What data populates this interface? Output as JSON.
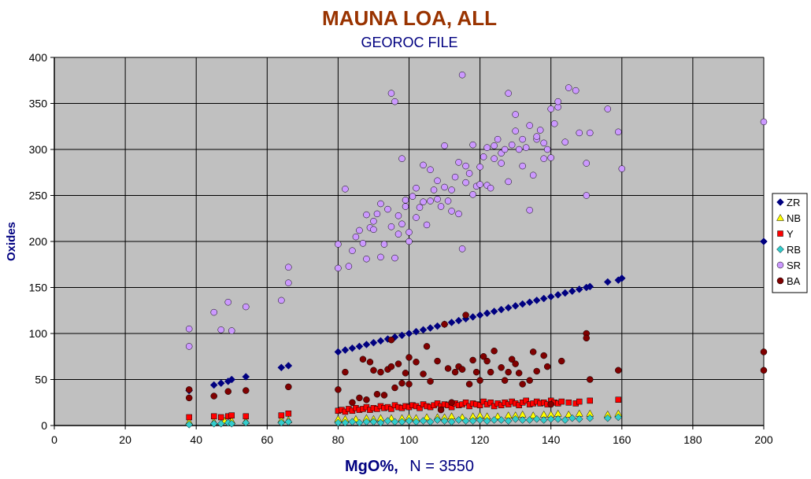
{
  "chart_data": {
    "type": "scatter",
    "title": "MAUNA LOA, ALL",
    "subtitle": "GEOROC FILE",
    "xlabel_main": "MgO%,",
    "xlabel_n": "N = 3550",
    "ylabel": "Oxides",
    "xlim": [
      0,
      200
    ],
    "ylim": [
      0,
      400
    ],
    "x_ticks": [
      "0",
      "20",
      "40",
      "60",
      "80",
      "100",
      "120",
      "140",
      "160",
      "180",
      "200"
    ],
    "y_ticks": [
      "0",
      "50",
      "100",
      "150",
      "200",
      "250",
      "300",
      "350",
      "400"
    ],
    "grid": true,
    "legend_position": "right",
    "plot_background": "#c0c0c0",
    "series": [
      {
        "name": "ZR",
        "marker": "diamond",
        "color": "#000080",
        "x": [
          38,
          45,
          47,
          49,
          50,
          54,
          64,
          66,
          80,
          82,
          84,
          86,
          88,
          90,
          92,
          94,
          96,
          98,
          100,
          102,
          104,
          106,
          108,
          110,
          112,
          114,
          116,
          118,
          120,
          122,
          124,
          126,
          128,
          130,
          132,
          134,
          136,
          138,
          140,
          142,
          144,
          146,
          148,
          150,
          151,
          156,
          159,
          160,
          200
        ],
        "y": [
          38,
          44,
          46,
          48,
          50,
          53,
          63,
          65,
          80,
          82,
          84,
          86,
          88,
          90,
          92,
          94,
          96,
          98,
          100,
          102,
          104,
          106,
          108,
          110,
          112,
          114,
          116,
          118,
          120,
          122,
          124,
          126,
          128,
          130,
          132,
          134,
          136,
          138,
          140,
          142,
          144,
          146,
          148,
          150,
          151,
          156,
          158,
          160,
          200
        ]
      },
      {
        "name": "NB",
        "marker": "triangle",
        "color": "#ffff00",
        "x": [
          38,
          45,
          48,
          50,
          54,
          64,
          66,
          80,
          82,
          85,
          88,
          90,
          92,
          95,
          98,
          100,
          102,
          105,
          108,
          110,
          112,
          115,
          118,
          120,
          122,
          125,
          128,
          130,
          132,
          135,
          138,
          140,
          142,
          145,
          148,
          151,
          156,
          159
        ],
        "y": [
          4,
          4,
          5,
          5,
          5,
          6,
          6,
          7,
          7,
          7,
          8,
          7,
          8,
          8,
          8,
          9,
          8,
          9,
          9,
          9,
          10,
          9,
          10,
          11,
          10,
          10,
          11,
          11,
          12,
          11,
          12,
          12,
          13,
          12,
          13,
          13,
          12,
          13
        ]
      },
      {
        "name": "Y",
        "marker": "square",
        "color": "#ff0000",
        "x": [
          38,
          45,
          47,
          49,
          50,
          54,
          64,
          66,
          80,
          81,
          82,
          83,
          84,
          85,
          86,
          87,
          88,
          89,
          90,
          91,
          92,
          93,
          94,
          95,
          96,
          97,
          98,
          99,
          100,
          101,
          102,
          103,
          104,
          105,
          106,
          107,
          108,
          109,
          110,
          111,
          112,
          113,
          114,
          115,
          116,
          117,
          118,
          119,
          120,
          121,
          122,
          123,
          124,
          125,
          126,
          127,
          128,
          129,
          130,
          131,
          132,
          133,
          134,
          135,
          136,
          137,
          138,
          139,
          140,
          141,
          142,
          143,
          145,
          147,
          148,
          151,
          159
        ],
        "y": [
          9,
          10,
          9,
          10,
          11,
          10,
          11,
          13,
          16,
          17,
          15,
          18,
          16,
          19,
          17,
          18,
          20,
          17,
          19,
          18,
          21,
          19,
          20,
          18,
          22,
          20,
          19,
          21,
          20,
          22,
          21,
          19,
          23,
          21,
          20,
          22,
          24,
          21,
          23,
          22,
          20,
          24,
          22,
          23,
          25,
          21,
          24,
          23,
          22,
          26,
          23,
          25,
          21,
          24,
          22,
          25,
          23,
          26,
          24,
          22,
          25,
          27,
          23,
          24,
          26,
          24,
          25,
          23,
          27,
          25,
          24,
          26,
          25,
          24,
          26,
          27,
          28
        ]
      },
      {
        "name": "RB",
        "marker": "diamond",
        "color": "#33cccc",
        "x": [
          38,
          45,
          47,
          49,
          50,
          54,
          64,
          66,
          80,
          82,
          84,
          86,
          88,
          90,
          92,
          94,
          96,
          98,
          100,
          102,
          104,
          106,
          108,
          110,
          112,
          114,
          116,
          118,
          120,
          122,
          124,
          126,
          128,
          130,
          132,
          134,
          136,
          138,
          140,
          142,
          144,
          146,
          148,
          151,
          156,
          159
        ],
        "y": [
          1,
          2,
          2,
          3,
          2,
          3,
          3,
          4,
          3,
          3,
          4,
          3,
          4,
          4,
          3,
          5,
          4,
          4,
          5,
          4,
          5,
          4,
          6,
          5,
          4,
          6,
          5,
          5,
          6,
          5,
          6,
          6,
          5,
          7,
          6,
          6,
          7,
          6,
          7,
          7,
          6,
          8,
          7,
          8,
          8,
          9
        ]
      },
      {
        "name": "SR",
        "marker": "circle",
        "color": "#cc99ff",
        "x": [
          38,
          38,
          45,
          47,
          49,
          50,
          54,
          64,
          66,
          66,
          80,
          80,
          82,
          83,
          84,
          85,
          86,
          87,
          88,
          88,
          89,
          90,
          90,
          91,
          92,
          92,
          93,
          94,
          95,
          95,
          96,
          96,
          97,
          97,
          98,
          98,
          99,
          99,
          100,
          100,
          101,
          102,
          102,
          103,
          104,
          104,
          105,
          106,
          106,
          107,
          108,
          108,
          109,
          110,
          110,
          111,
          112,
          112,
          113,
          114,
          114,
          115,
          115,
          116,
          116,
          117,
          118,
          118,
          119,
          120,
          120,
          121,
          122,
          122,
          123,
          124,
          124,
          125,
          126,
          126,
          127,
          128,
          128,
          129,
          130,
          130,
          131,
          132,
          132,
          133,
          134,
          134,
          135,
          136,
          136,
          137,
          138,
          138,
          139,
          140,
          140,
          141,
          142,
          142,
          144,
          145,
          147,
          148,
          150,
          150,
          151,
          156,
          159,
          160,
          200
        ],
        "y": [
          86,
          105,
          123,
          104,
          134,
          103,
          129,
          136,
          155,
          172,
          171,
          197,
          257,
          173,
          190,
          205,
          212,
          198,
          181,
          229,
          215,
          222,
          213,
          230,
          183,
          241,
          197,
          235,
          216,
          361,
          352,
          182,
          228,
          208,
          290,
          219,
          238,
          245,
          210,
          200,
          249,
          226,
          258,
          237,
          243,
          283,
          218,
          244,
          278,
          256,
          266,
          246,
          238,
          259,
          304,
          244,
          233,
          256,
          270,
          286,
          230,
          192,
          381,
          264,
          282,
          274,
          305,
          251,
          260,
          262,
          281,
          292,
          302,
          261,
          258,
          290,
          304,
          311,
          285,
          296,
          300,
          265,
          361,
          305,
          338,
          320,
          300,
          311,
          282,
          302,
          234,
          326,
          272,
          311,
          314,
          321,
          290,
          307,
          300,
          344,
          291,
          328,
          346,
          352,
          308,
          367,
          364,
          318,
          250,
          285,
          318,
          344,
          319,
          279,
          330
        ]
      },
      {
        "name": "BA",
        "marker": "circle",
        "color": "#800000",
        "x": [
          38,
          38,
          45,
          49,
          54,
          66,
          80,
          82,
          84,
          86,
          87,
          88,
          89,
          90,
          91,
          92,
          93,
          94,
          95,
          95,
          96,
          97,
          98,
          99,
          100,
          100,
          102,
          104,
          105,
          106,
          108,
          109,
          110,
          111,
          112,
          113,
          114,
          115,
          116,
          117,
          118,
          119,
          120,
          121,
          122,
          123,
          124,
          126,
          127,
          128,
          129,
          130,
          131,
          132,
          134,
          135,
          136,
          138,
          139,
          140,
          143,
          150,
          150,
          151,
          159,
          200,
          200
        ],
        "y": [
          30,
          39,
          32,
          37,
          38,
          42,
          39,
          58,
          25,
          30,
          72,
          28,
          69,
          60,
          34,
          58,
          33,
          61,
          64,
          93,
          41,
          67,
          46,
          57,
          45,
          74,
          69,
          56,
          86,
          48,
          70,
          17,
          110,
          62,
          25,
          58,
          64,
          61,
          120,
          45,
          71,
          58,
          49,
          75,
          70,
          58,
          81,
          63,
          49,
          58,
          72,
          67,
          57,
          45,
          49,
          80,
          59,
          76,
          64,
          23,
          70,
          100,
          95,
          50,
          60,
          60,
          80
        ]
      }
    ]
  }
}
